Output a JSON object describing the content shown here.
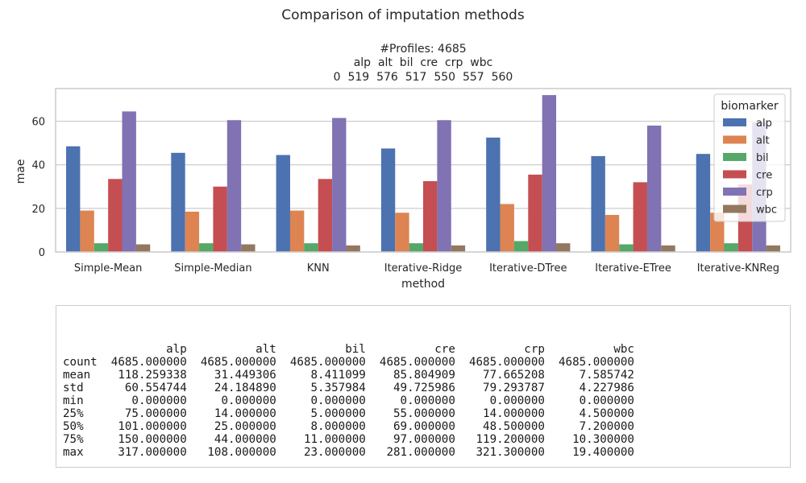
{
  "figure": {
    "suptitle": "Comparison of imputation methods",
    "subtitle_lines": [
      "#Profiles: 4685",
      "alp  alt  bil  cre  crp  wbc",
      "0  519  576  517  550  557  560"
    ]
  },
  "chart_data": {
    "type": "bar",
    "title": "",
    "xlabel": "method",
    "ylabel": "mae",
    "ylim": [
      0,
      75
    ],
    "yticks": [
      0,
      20,
      40,
      60
    ],
    "grid": true,
    "legend": {
      "title": "biomarker",
      "placement": "top-right"
    },
    "categories": [
      "Simple-Mean",
      "Simple-Median",
      "KNN",
      "Iterative-Ridge",
      "Iterative-DTree",
      "Iterative-ETree",
      "Iterative-KNReg"
    ],
    "series": [
      {
        "name": "alp",
        "color": "#4c72b0",
        "values": [
          48.5,
          45.5,
          44.5,
          47.5,
          52.5,
          44.0,
          45.0
        ]
      },
      {
        "name": "alt",
        "color": "#dd8452",
        "values": [
          19.0,
          18.5,
          19.0,
          18.0,
          22.0,
          17.0,
          18.0
        ]
      },
      {
        "name": "bil",
        "color": "#55a868",
        "values": [
          4.0,
          4.0,
          4.0,
          4.0,
          5.0,
          3.5,
          4.0
        ]
      },
      {
        "name": "cre",
        "color": "#c44e52",
        "values": [
          33.5,
          30.0,
          33.5,
          32.5,
          35.5,
          32.0,
          31.0
        ]
      },
      {
        "name": "crp",
        "color": "#8172b3",
        "values": [
          64.5,
          60.5,
          61.5,
          60.5,
          72.0,
          58.0,
          59.5
        ]
      },
      {
        "name": "wbc",
        "color": "#937860",
        "values": [
          3.5,
          3.5,
          3.0,
          3.0,
          4.0,
          3.0,
          3.0
        ]
      }
    ]
  },
  "stats_table": {
    "columns": [
      "alp",
      "alt",
      "bil",
      "cre",
      "crp",
      "wbc"
    ],
    "rows": [
      {
        "label": "count",
        "values": [
          "4685.000000",
          "4685.000000",
          "4685.000000",
          "4685.000000",
          "4685.000000",
          "4685.000000"
        ]
      },
      {
        "label": "mean",
        "values": [
          "118.259338",
          "31.449306",
          "8.411099",
          "85.804909",
          "77.665208",
          "7.585742"
        ]
      },
      {
        "label": "std",
        "values": [
          "60.554744",
          "24.184890",
          "5.357984",
          "49.725986",
          "79.293787",
          "4.227986"
        ]
      },
      {
        "label": "min",
        "values": [
          "0.000000",
          "0.000000",
          "0.000000",
          "0.000000",
          "0.000000",
          "0.000000"
        ]
      },
      {
        "label": "25%",
        "values": [
          "75.000000",
          "14.000000",
          "5.000000",
          "55.000000",
          "14.000000",
          "4.500000"
        ]
      },
      {
        "label": "50%",
        "values": [
          "101.000000",
          "25.000000",
          "8.000000",
          "69.000000",
          "48.500000",
          "7.200000"
        ]
      },
      {
        "label": "75%",
        "values": [
          "150.000000",
          "44.000000",
          "11.000000",
          "97.000000",
          "119.200000",
          "10.300000"
        ]
      },
      {
        "label": "max",
        "values": [
          "317.000000",
          "108.000000",
          "23.000000",
          "281.000000",
          "321.300000",
          "19.400000"
        ]
      }
    ]
  }
}
